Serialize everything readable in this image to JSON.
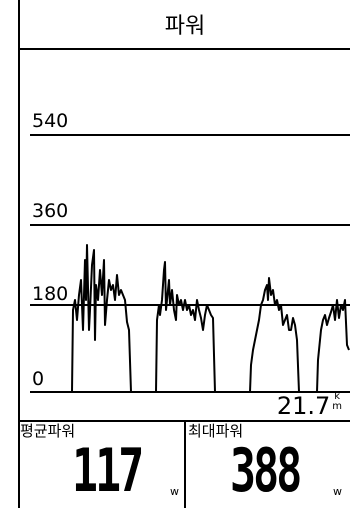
{
  "screen": {
    "title": "파워",
    "y_axis_labels": [
      "540",
      "360",
      "180",
      "0"
    ],
    "distance": {
      "value": "21.7",
      "unit_top": "k",
      "unit_bottom": "m"
    },
    "fields": [
      {
        "label": "평균파워",
        "value": "117",
        "unit": "w"
      },
      {
        "label": "최대파워",
        "value": "388",
        "unit": "w"
      }
    ]
  }
}
